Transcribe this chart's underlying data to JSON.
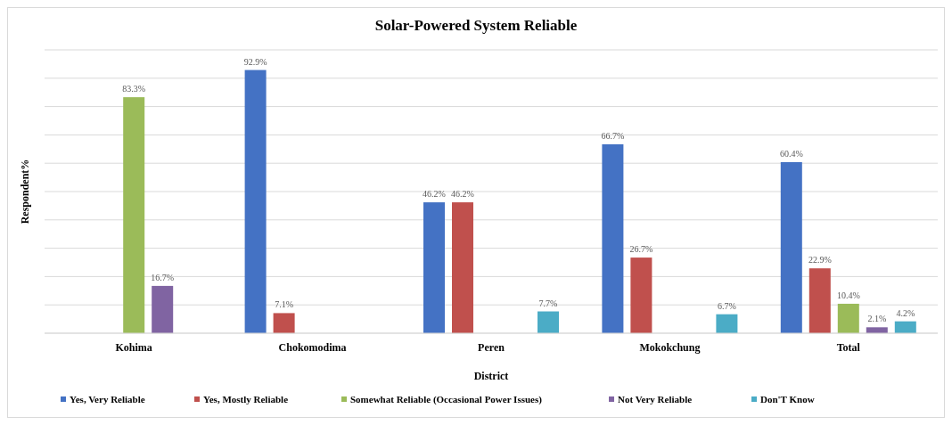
{
  "chart_data": {
    "type": "bar",
    "title": "Solar-Powered System Reliable",
    "xlabel": "District",
    "ylabel": "Respondent%",
    "categories": [
      "Kohima",
      "Chokomodima",
      "Peren",
      "Mokokchung",
      "Total"
    ],
    "series": [
      {
        "name": "Yes, Very Reliable",
        "color": "#4472c4",
        "values": [
          null,
          92.9,
          46.2,
          66.7,
          60.4
        ],
        "value_labels": [
          null,
          "92.9%",
          "46.2%",
          "66.7%",
          "60.4%"
        ]
      },
      {
        "name": "Yes, Mostly Reliable",
        "color": "#c0504d",
        "values": [
          null,
          7.1,
          46.2,
          26.7,
          22.9
        ],
        "value_labels": [
          null,
          "7.1%",
          "46.2%",
          "26.7%",
          "22.9%"
        ]
      },
      {
        "name": "Somewhat Reliable (Occasional Power Issues)",
        "color": "#9bbb59",
        "values": [
          83.3,
          null,
          null,
          null,
          10.4
        ],
        "value_labels": [
          "83.3%",
          null,
          null,
          null,
          "10.4%"
        ]
      },
      {
        "name": "Not Very Reliable",
        "color": "#8064a2",
        "values": [
          16.7,
          null,
          null,
          null,
          2.1
        ],
        "value_labels": [
          "16.7%",
          null,
          null,
          null,
          "2.1%"
        ]
      },
      {
        "name": "Don'T Know",
        "color": "#4bacc6",
        "values": [
          null,
          null,
          7.7,
          6.7,
          4.2
        ],
        "value_labels": [
          null,
          null,
          "7.7%",
          "6.7%",
          "4.2%"
        ]
      }
    ],
    "ylim": [
      0,
      100
    ],
    "yticks": [
      {
        "value": 0,
        "label": null
      },
      {
        "value": 10,
        "label": null
      },
      {
        "value": 20,
        "label": null
      },
      {
        "value": 30,
        "label": null
      },
      {
        "value": 40,
        "label": null
      },
      {
        "value": 50,
        "label": null
      },
      {
        "value": 60,
        "label": null
      },
      {
        "value": 70,
        "label": null
      },
      {
        "value": 80,
        "label": null
      },
      {
        "value": 90,
        "label": null
      },
      {
        "value": 100,
        "label": null
      }
    ],
    "grid": "y",
    "legend": "bottom"
  }
}
